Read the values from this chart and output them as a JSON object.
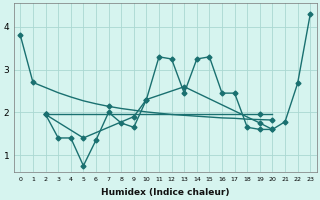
{
  "xlabel": "Humidex (Indice chaleur)",
  "x_all": [
    0,
    1,
    2,
    3,
    4,
    5,
    6,
    7,
    8,
    9,
    10,
    11,
    12,
    13,
    14,
    15,
    16,
    17,
    18,
    19,
    20,
    21,
    22,
    23
  ],
  "color": "#1a7070",
  "bg_color": "#d6f4ef",
  "grid_color": "#aad8d2",
  "ylim": [
    0.6,
    4.55
  ],
  "yticks": [
    1,
    2,
    3,
    4
  ],
  "xlim": [
    -0.5,
    23.5
  ],
  "line_declining": {
    "x": [
      0,
      1,
      2,
      3,
      4,
      5,
      6,
      7,
      8,
      9,
      10,
      11,
      12,
      13,
      14,
      15,
      16,
      17,
      18,
      19,
      20
    ],
    "y": [
      3.8,
      2.7,
      2.58,
      2.46,
      2.36,
      2.27,
      2.2,
      2.14,
      2.09,
      2.05,
      2.01,
      1.98,
      1.95,
      1.93,
      1.91,
      1.89,
      1.87,
      1.86,
      1.84,
      1.83,
      1.82
    ],
    "markers_at": [
      0,
      1,
      7,
      20
    ]
  },
  "line_flat": {
    "x": [
      2,
      3,
      4,
      5,
      6,
      7,
      8,
      9,
      10,
      11,
      12,
      13,
      14,
      15,
      16,
      17,
      18,
      19,
      20
    ],
    "y": [
      1.95,
      1.95,
      1.95,
      1.95,
      1.95,
      1.95,
      1.95,
      1.95,
      1.95,
      1.95,
      1.95,
      1.95,
      1.95,
      1.95,
      1.95,
      1.95,
      1.95,
      1.95,
      1.95
    ],
    "markers_at": [
      2,
      19
    ]
  },
  "line_volatile": {
    "x": [
      2,
      3,
      4,
      5,
      6,
      7,
      8,
      9,
      10,
      11,
      12,
      13,
      14,
      15,
      16,
      17,
      18,
      19,
      20
    ],
    "y": [
      1.95,
      1.4,
      1.4,
      0.75,
      1.35,
      2.0,
      1.75,
      1.65,
      2.3,
      3.3,
      3.25,
      2.45,
      3.25,
      3.3,
      2.45,
      2.45,
      1.65,
      1.6,
      1.6
    ]
  },
  "line_rising": {
    "x": [
      2,
      5,
      9,
      10,
      13,
      19,
      20,
      21,
      22,
      23
    ],
    "y": [
      1.95,
      1.4,
      1.9,
      2.3,
      2.6,
      1.75,
      1.6,
      1.78,
      2.68,
      4.3
    ]
  }
}
